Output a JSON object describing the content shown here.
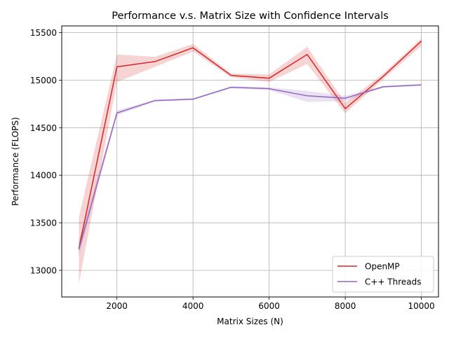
{
  "chart_data": {
    "type": "line",
    "title": "Performance v.s. Matrix Size with Confidence Intervals",
    "xlabel": "Matrix Sizes (N)",
    "ylabel": "Performance (FLOPS)",
    "xlim": [
      550,
      10450
    ],
    "ylim": [
      12720,
      15570
    ],
    "x_ticks": [
      2000,
      4000,
      6000,
      8000,
      10000
    ],
    "y_ticks": [
      13000,
      13500,
      14000,
      14500,
      15000,
      15500
    ],
    "grid": true,
    "legend_position": "lower-right",
    "x": [
      1000,
      2000,
      3000,
      4000,
      5000,
      6000,
      7000,
      8000,
      9000,
      10000
    ],
    "series": [
      {
        "name": "OpenMP",
        "color": "#d62728",
        "values": [
          13230,
          15140,
          15195,
          15340,
          15050,
          15020,
          15270,
          14700,
          15040,
          15410
        ],
        "lower": [
          12860,
          14980,
          15140,
          15300,
          15030,
          14980,
          15170,
          14650,
          15010,
          15360
        ],
        "upper": [
          13560,
          15270,
          15245,
          15380,
          15070,
          15060,
          15350,
          14760,
          15070,
          15440
        ]
      },
      {
        "name": "C++ Threads",
        "color": "#9467bd",
        "values": [
          13220,
          14655,
          14785,
          14800,
          14925,
          14910,
          14835,
          14810,
          14930,
          14950
        ],
        "lower": [
          13150,
          14630,
          14775,
          14790,
          14915,
          14895,
          14770,
          14780,
          14920,
          14940
        ],
        "upper": [
          13310,
          14680,
          14795,
          14810,
          14935,
          14925,
          14885,
          14835,
          14940,
          14960
        ]
      }
    ]
  }
}
